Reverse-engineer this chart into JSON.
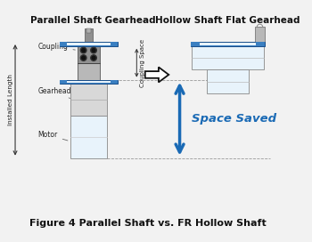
{
  "title": "Figure 4 Parallel Shaft vs. FR Hollow Shaft",
  "left_title": "Parallel Shaft Gearhead",
  "right_title": "Hollow Shaft Flat Gearhead",
  "bg_color": "#f2f2f2",
  "blue": "#3a7fc1",
  "light_blue": "#cce0f0",
  "very_light_blue": "#e8f3fb",
  "gray_dark": "#888888",
  "gray_med": "#b0b0b0",
  "gray_light": "#d8d8d8",
  "coup_dark": "#909090",
  "coup_mid": "#b8b8b8",
  "arrow_blue": "#1a6ab5",
  "labels": {
    "coupling": "Coupling",
    "gearhead": "Gearhead",
    "motor": "Motor",
    "installed_length": "Installed Length",
    "coupling_space": "Coupling Space",
    "space_saved": "Space Saved"
  }
}
